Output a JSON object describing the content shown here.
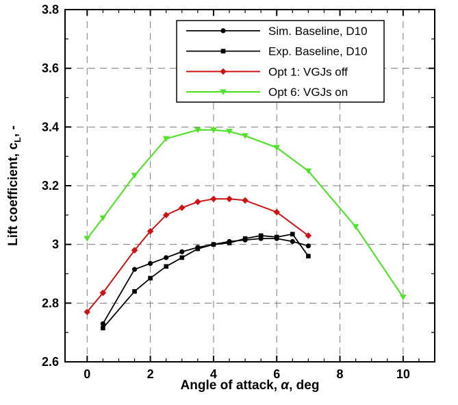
{
  "chart_data": {
    "type": "line",
    "title": "",
    "xlabel": "Angle of attack, α, deg",
    "ylabel": "Lift coefficient, cL, -",
    "xlim": [
      -0.7,
      11
    ],
    "ylim": [
      2.6,
      3.8
    ],
    "xticks": [
      0,
      2,
      4,
      6,
      8,
      10
    ],
    "yticks": [
      2.6,
      2.8,
      3,
      3.2,
      3.4,
      3.6,
      3.8
    ],
    "grid": "dashed",
    "grid_color": "#7a7a7a",
    "background": "#ffffff",
    "legend_position": "top-center",
    "series": [
      {
        "name": "Sim. Baseline, D10",
        "color": "#000000",
        "marker": "circle",
        "width": 1.8,
        "points": [
          [
            0.5,
            2.73
          ],
          [
            1.5,
            2.915
          ],
          [
            2,
            2.935
          ],
          [
            2.5,
            2.955
          ],
          [
            3,
            2.975
          ],
          [
            3.5,
            2.99
          ],
          [
            4,
            3.0
          ],
          [
            4.5,
            3.01
          ],
          [
            5,
            3.015
          ],
          [
            5.5,
            3.02
          ],
          [
            6,
            3.02
          ],
          [
            6.5,
            3.01
          ],
          [
            7,
            2.995
          ]
        ]
      },
      {
        "name": "Exp. Baseline, D10",
        "color": "#000000",
        "marker": "square",
        "width": 1.8,
        "points": [
          [
            0.5,
            2.715
          ],
          [
            1.5,
            2.84
          ],
          [
            2,
            2.885
          ],
          [
            2.5,
            2.925
          ],
          [
            3,
            2.955
          ],
          [
            3.5,
            2.985
          ],
          [
            4,
            3.0
          ],
          [
            4.5,
            3.005
          ],
          [
            5,
            3.02
          ],
          [
            5.5,
            3.03
          ],
          [
            6,
            3.025
          ],
          [
            6.5,
            3.035
          ],
          [
            7,
            2.96
          ]
        ]
      },
      {
        "name": "Opt 1: VGJs off",
        "color": "#cc1414",
        "marker": "diamond",
        "width": 2,
        "points": [
          [
            0,
            2.77
          ],
          [
            0.5,
            2.835
          ],
          [
            1.5,
            2.98
          ],
          [
            2,
            3.045
          ],
          [
            2.5,
            3.1
          ],
          [
            3,
            3.125
          ],
          [
            3.5,
            3.145
          ],
          [
            4,
            3.155
          ],
          [
            4.5,
            3.155
          ],
          [
            5,
            3.15
          ],
          [
            6,
            3.11
          ],
          [
            7,
            3.03
          ]
        ]
      },
      {
        "name": "Opt 6: VGJs on",
        "color": "#52e22c",
        "marker": "triangle-down",
        "width": 2.2,
        "points": [
          [
            0,
            3.02
          ],
          [
            0.5,
            3.09
          ],
          [
            1.5,
            3.235
          ],
          [
            2.5,
            3.36
          ],
          [
            3.5,
            3.39
          ],
          [
            4,
            3.39
          ],
          [
            4.5,
            3.385
          ],
          [
            5,
            3.37
          ],
          [
            6,
            3.33
          ],
          [
            7,
            3.25
          ],
          [
            8.5,
            3.06
          ],
          [
            10,
            2.82
          ]
        ]
      }
    ]
  },
  "axes": {
    "x_label_prefix": "Angle of attack, ",
    "x_label_alpha": "α",
    "x_label_suffix": ", deg",
    "y_label_prefix": "Lift coefficient, c",
    "y_label_sub": "L",
    "y_label_suffix": ", -"
  }
}
